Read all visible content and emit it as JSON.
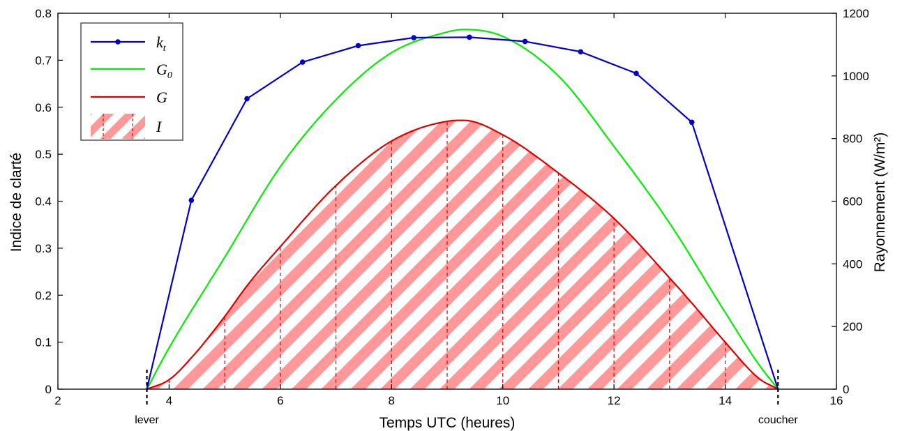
{
  "chart_data": {
    "type": "line",
    "xlabel": "Temps UTC (heures)",
    "ylabel_left": "Indice de clarté",
    "ylabel_right": "Rayonnement (W/m²)",
    "xlim": [
      2,
      16
    ],
    "ylim_left": [
      0,
      0.8
    ],
    "ylim_right": [
      0,
      1200
    ],
    "xticks": [
      2,
      4,
      6,
      8,
      10,
      12,
      14,
      16
    ],
    "yticks_left": [
      0,
      0.1,
      0.2,
      0.3,
      0.4,
      0.5,
      0.6,
      0.7,
      0.8
    ],
    "yticks_right": [
      0,
      200,
      400,
      600,
      800,
      1000,
      1200
    ],
    "xtick_labels": [
      "2",
      "4",
      "6",
      "8",
      "10",
      "12",
      "14",
      "16"
    ],
    "ytick_labels_left": [
      "0",
      "0.1",
      "0.2",
      "0.3",
      "0.4",
      "0.5",
      "0.6",
      "0.7",
      "0.8"
    ],
    "ytick_labels_right": [
      "0",
      "200",
      "400",
      "600",
      "800",
      "1000",
      "1200"
    ],
    "grid": false,
    "legend_position": "top-left",
    "events": [
      {
        "x": 3.6,
        "label": "lever"
      },
      {
        "x": 14.95,
        "label": "coucher"
      }
    ],
    "series": [
      {
        "name": "k",
        "name_sub": "t",
        "axis": "left",
        "style": "line-markers",
        "color": "#0000cc",
        "x": [
          3.6,
          4.4,
          5.4,
          6.4,
          7.4,
          8.4,
          9.4,
          10.4,
          11.4,
          12.4,
          13.4,
          14.95
        ],
        "y": [
          0.0,
          0.402,
          0.618,
          0.696,
          0.731,
          0.748,
          0.749,
          0.74,
          0.718,
          0.672,
          0.568,
          0.0
        ]
      },
      {
        "name": "G",
        "name_sub": "0",
        "axis": "right",
        "style": "line",
        "color": "#00ee00",
        "x": [
          3.6,
          4.0,
          5.0,
          6.0,
          7.0,
          8.0,
          9.0,
          9.3,
          10.0,
          11.0,
          12.0,
          13.0,
          14.0,
          14.6,
          14.95
        ],
        "y": [
          0,
          132,
          421,
          710,
          924,
          1074,
          1140,
          1148,
          1126,
          1000,
          775,
          530,
          245,
          80,
          0
        ]
      },
      {
        "name": "G",
        "name_sub": "",
        "axis": "right",
        "style": "line",
        "color": "#dd0000",
        "x": [
          3.6,
          4.0,
          4.4,
          5.0,
          5.4,
          6.0,
          7.0,
          8.0,
          9.0,
          9.3,
          10.0,
          11.0,
          12.0,
          13.0,
          13.4,
          14.0,
          14.6,
          14.95
        ],
        "y": [
          0,
          30,
          100,
          232,
          330,
          455,
          650,
          792,
          855,
          858,
          812,
          690,
          545,
          355,
          275,
          150,
          35,
          0
        ]
      },
      {
        "name": "I",
        "name_sub": "",
        "axis": "right",
        "style": "hatched-area",
        "color": "#ff9090",
        "hourly_markers": [
          4,
          5,
          6,
          7,
          8,
          9,
          10,
          11,
          12,
          13,
          14
        ]
      }
    ]
  }
}
